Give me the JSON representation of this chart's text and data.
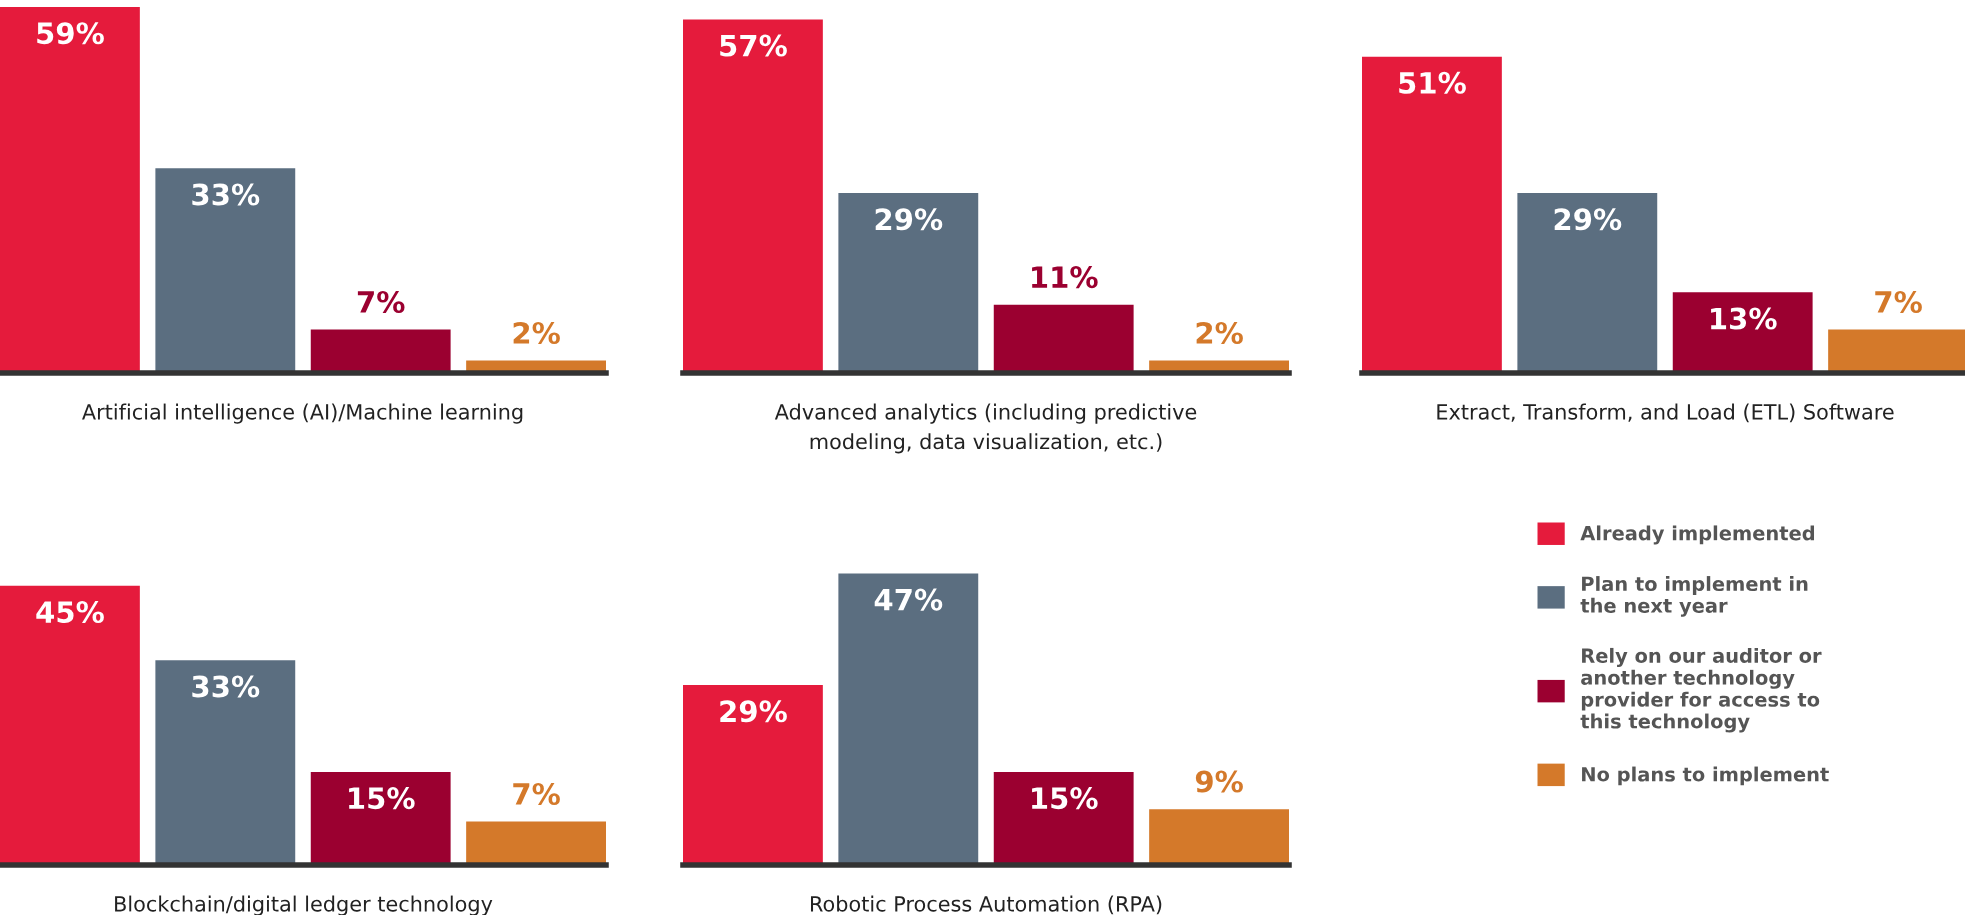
{
  "chart_data": [
    {
      "type": "bar",
      "xlabel": "Artificial intelligence (AI)/Machine learning",
      "categories": [
        null
      ],
      "tick_labels": false,
      "legend": "bottom right",
      "series": [
        {
          "name": "Already implemented",
          "color": "#e51b3c",
          "values": [
            59
          ],
          "value_labels": [
            "59%"
          ]
        },
        {
          "name": "Plan to implement in\nthe next year",
          "color": "#5b6e80",
          "values": [
            33
          ],
          "value_labels": [
            "33%"
          ]
        },
        {
          "name": "Rely on our auditor or\nanother technology\nprovider for access to\nthis technology",
          "color": "#9b0030",
          "values": [
            7
          ],
          "value_labels": [
            "7%"
          ]
        },
        {
          "name": "No plans to implement",
          "color": "#d4792a",
          "values": [
            2
          ],
          "value_labels": [
            "2%"
          ]
        }
      ]
    },
    {
      "type": "bar",
      "xlabel": "Advanced analytics (including predictive\nmodeling, data visualization, etc.)",
      "categories": [
        null
      ],
      "tick_labels": false,
      "series": [
        {
          "color": "#e51b3c",
          "values": [
            57
          ],
          "value_labels": [
            "57%"
          ]
        },
        {
          "color": "#5b6e80",
          "values": [
            29
          ],
          "value_labels": [
            "29%"
          ]
        },
        {
          "color": "#9b0030",
          "values": [
            11
          ],
          "value_labels": [
            "11%"
          ]
        },
        {
          "color": "#d4792a",
          "values": [
            2
          ],
          "value_labels": [
            "2%"
          ]
        }
      ]
    },
    {
      "type": "bar",
      "xlabel": "Extract, Transform, and Load (ETL) Software",
      "categories": [
        null
      ],
      "tick_labels": false,
      "series": [
        {
          "color": "#e51b3c",
          "values": [
            51
          ],
          "value_labels": [
            "51%"
          ]
        },
        {
          "color": "#5b6e80",
          "values": [
            29
          ],
          "value_labels": [
            "29%"
          ]
        },
        {
          "color": "#9b0030",
          "values": [
            13
          ],
          "value_labels": [
            "13%"
          ]
        },
        {
          "color": "#d4792a",
          "values": [
            7
          ],
          "value_labels": [
            "7%"
          ]
        }
      ]
    },
    {
      "type": "bar",
      "xlabel": "Blockchain/digital ledger technology",
      "categories": [
        null
      ],
      "tick_labels": false,
      "series": [
        {
          "color": "#e51b3c",
          "values": [
            45
          ],
          "value_labels": [
            "45%"
          ]
        },
        {
          "color": "#5b6e80",
          "values": [
            33
          ],
          "value_labels": [
            "33%"
          ]
        },
        {
          "color": "#9b0030",
          "values": [
            15
          ],
          "value_labels": [
            "15%"
          ]
        },
        {
          "color": "#d4792a",
          "values": [
            7
          ],
          "value_labels": [
            "7%"
          ]
        }
      ]
    },
    {
      "type": "bar",
      "xlabel": "Robotic Process Automation (RPA)",
      "categories": [
        null
      ],
      "tick_labels": false,
      "series": [
        {
          "color": "#e51b3c",
          "values": [
            29
          ],
          "value_labels": [
            "29%"
          ]
        },
        {
          "color": "#5b6e80",
          "values": [
            47
          ],
          "value_labels": [
            "47%"
          ]
        },
        {
          "color": "#9b0030",
          "values": [
            15
          ],
          "value_labels": [
            "15%"
          ]
        },
        {
          "color": "#d4792a",
          "values": [
            9
          ],
          "value_labels": [
            "9%"
          ]
        }
      ]
    }
  ]
}
